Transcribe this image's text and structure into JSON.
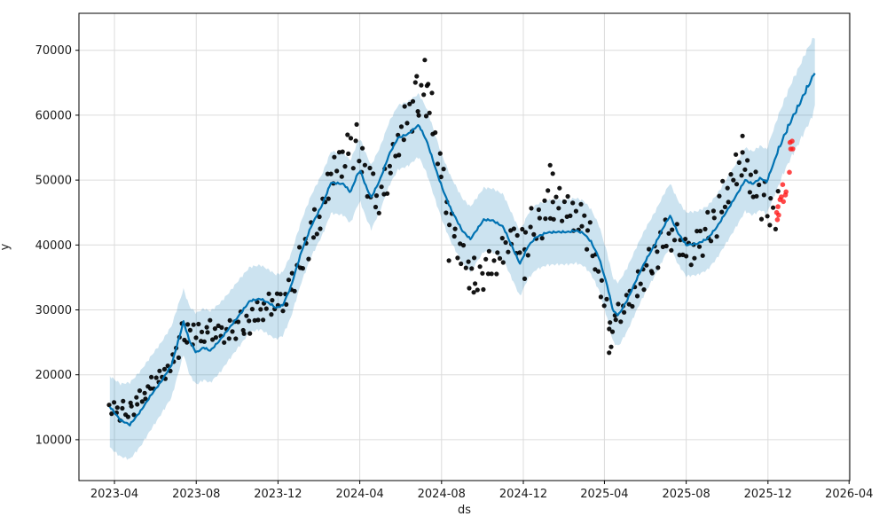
{
  "chart_data": {
    "type": "scatter",
    "title": "",
    "xlabel": "ds",
    "ylabel": "y",
    "grid": true,
    "legend": null,
    "x_ticks": [
      "2023-04",
      "2023-08",
      "2023-12",
      "2024-04",
      "2024-08",
      "2024-12",
      "2025-04",
      "2025-08",
      "2025-12",
      "2026-04"
    ],
    "y_ticks": [
      10000,
      20000,
      30000,
      40000,
      50000,
      60000,
      70000
    ],
    "xlim": [
      "2023-02-07",
      "2026-04-02"
    ],
    "ylim": [
      3700,
      75700
    ],
    "history_end": "2025-12-15",
    "colors": {
      "line": "#0072B2",
      "band": "#0072B2",
      "band_opacity": 0.2,
      "history_dots": "#000000",
      "future_dots": "#ff1a1a",
      "grid": "#dcdcdc",
      "spine": "#000000",
      "text": "#1a1a1a",
      "background": "#ffffff"
    },
    "forecast": [
      [
        "2023-03-25",
        15100,
        8800,
        19800
      ],
      [
        "2023-04-10",
        13000,
        7400,
        18600
      ],
      [
        "2023-04-24",
        12300,
        7000,
        18800
      ],
      [
        "2023-05-10",
        14400,
        9000,
        20600
      ],
      [
        "2023-05-25",
        16800,
        11500,
        22800
      ],
      [
        "2023-06-10",
        19000,
        14000,
        25000
      ],
      [
        "2023-06-25",
        21500,
        16500,
        27500
      ],
      [
        "2023-07-06",
        25500,
        20500,
        31000
      ],
      [
        "2023-07-13",
        28200,
        23200,
        33200
      ],
      [
        "2023-07-22",
        25200,
        20000,
        30500
      ],
      [
        "2023-08-01",
        23400,
        18500,
        29500
      ],
      [
        "2023-08-12",
        24200,
        19200,
        30200
      ],
      [
        "2023-08-22",
        23700,
        18800,
        29800
      ],
      [
        "2023-09-05",
        25300,
        20300,
        31000
      ],
      [
        "2023-09-20",
        27300,
        22500,
        32800
      ],
      [
        "2023-10-05",
        29300,
        24500,
        34800
      ],
      [
        "2023-10-20",
        31400,
        26600,
        36600
      ],
      [
        "2023-11-05",
        31700,
        27000,
        36900
      ],
      [
        "2023-11-20",
        30900,
        26000,
        36000
      ],
      [
        "2023-11-28",
        30300,
        25500,
        35400
      ],
      [
        "2023-12-08",
        30700,
        26000,
        35800
      ],
      [
        "2023-12-20",
        33500,
        28800,
        38500
      ],
      [
        "2024-01-05",
        39000,
        34300,
        43800
      ],
      [
        "2024-01-20",
        43000,
        38300,
        47800
      ],
      [
        "2024-02-05",
        46200,
        41500,
        51000
      ],
      [
        "2024-02-18",
        49600,
        44900,
        54400
      ],
      [
        "2024-03-08",
        49400,
        44600,
        54200
      ],
      [
        "2024-03-18",
        48100,
        43300,
        53000
      ],
      [
        "2024-03-29",
        51000,
        46200,
        55900
      ],
      [
        "2024-04-02",
        51400,
        46600,
        56300
      ],
      [
        "2024-04-10",
        49100,
        44300,
        54100
      ],
      [
        "2024-04-18",
        47300,
        42400,
        52300
      ],
      [
        "2024-05-01",
        50000,
        45200,
        55000
      ],
      [
        "2024-05-15",
        54000,
        49200,
        59000
      ],
      [
        "2024-05-28",
        56500,
        51600,
        61500
      ],
      [
        "2024-06-12",
        57100,
        52200,
        62100
      ],
      [
        "2024-06-28",
        58500,
        53600,
        63300
      ],
      [
        "2024-07-10",
        56000,
        51000,
        61000
      ],
      [
        "2024-07-24",
        51500,
        46500,
        56500
      ],
      [
        "2024-08-03",
        48500,
        43500,
        53500
      ],
      [
        "2024-08-15",
        45500,
        40500,
        50500
      ],
      [
        "2024-09-01",
        42200,
        37200,
        47200
      ],
      [
        "2024-09-13",
        40900,
        35900,
        45900
      ],
      [
        "2024-10-03",
        43900,
        39000,
        48800
      ],
      [
        "2024-10-16",
        43800,
        38900,
        48700
      ],
      [
        "2024-11-01",
        42800,
        37800,
        47800
      ],
      [
        "2024-11-14",
        39800,
        34800,
        44800
      ],
      [
        "2024-11-26",
        37100,
        32100,
        42100
      ],
      [
        "2024-12-08",
        39800,
        34800,
        44800
      ],
      [
        "2024-12-20",
        41200,
        36200,
        46200
      ],
      [
        "2025-01-05",
        41900,
        36900,
        46900
      ],
      [
        "2025-01-20",
        42000,
        37000,
        47000
      ],
      [
        "2025-02-05",
        42000,
        37000,
        47000
      ],
      [
        "2025-02-18",
        42200,
        37200,
        47200
      ],
      [
        "2025-03-01",
        41800,
        36800,
        46800
      ],
      [
        "2025-03-12",
        40500,
        35500,
        45500
      ],
      [
        "2025-03-24",
        38000,
        33000,
        43000
      ],
      [
        "2025-04-05",
        33800,
        28800,
        38800
      ],
      [
        "2025-04-14",
        29800,
        25000,
        34800
      ],
      [
        "2025-04-22",
        29200,
        24400,
        34200
      ],
      [
        "2025-05-05",
        31500,
        26700,
        36500
      ],
      [
        "2025-05-18",
        34500,
        29700,
        39500
      ],
      [
        "2025-06-01",
        37500,
        32700,
        42500
      ],
      [
        "2025-06-15",
        40000,
        35200,
        45000
      ],
      [
        "2025-07-01",
        43300,
        38500,
        48300
      ],
      [
        "2025-07-08",
        44500,
        39700,
        49500
      ],
      [
        "2025-07-20",
        41800,
        37000,
        46800
      ],
      [
        "2025-08-01",
        40000,
        35200,
        45000
      ],
      [
        "2025-08-18",
        40200,
        35400,
        45200
      ],
      [
        "2025-09-02",
        41000,
        36200,
        46000
      ],
      [
        "2025-09-16",
        42800,
        38000,
        47800
      ],
      [
        "2025-10-01",
        45300,
        40500,
        50300
      ],
      [
        "2025-10-14",
        47500,
        42700,
        52500
      ],
      [
        "2025-10-28",
        50000,
        45200,
        55000
      ],
      [
        "2025-11-08",
        49400,
        44600,
        54400
      ],
      [
        "2025-11-20",
        50300,
        45400,
        55300
      ],
      [
        "2025-11-29",
        49700,
        44800,
        54700
      ],
      [
        "2025-12-08",
        52200,
        47000,
        57400
      ],
      [
        "2025-12-16",
        54500,
        49000,
        59800
      ],
      [
        "2025-12-26",
        57000,
        51500,
        62500
      ],
      [
        "2026-01-06",
        59500,
        53800,
        65200
      ],
      [
        "2026-01-16",
        61500,
        55700,
        67300
      ],
      [
        "2026-01-26",
        63700,
        57800,
        69600
      ],
      [
        "2026-02-04",
        65500,
        59500,
        71400
      ],
      [
        "2026-02-10",
        67000,
        61800,
        72300
      ]
    ],
    "observed_track": [
      [
        "2023-03-25",
        15000
      ],
      [
        "2023-04-06",
        14200
      ],
      [
        "2023-04-20",
        14500
      ],
      [
        "2023-05-04",
        15600
      ],
      [
        "2023-05-18",
        17300
      ],
      [
        "2023-06-01",
        19000
      ],
      [
        "2023-06-15",
        20300
      ],
      [
        "2023-06-29",
        22300
      ],
      [
        "2023-07-10",
        25800
      ],
      [
        "2023-07-22",
        26800
      ],
      [
        "2023-08-05",
        26000
      ],
      [
        "2023-08-20",
        26800
      ],
      [
        "2023-09-03",
        26300
      ],
      [
        "2023-09-17",
        26600
      ],
      [
        "2023-10-01",
        27400
      ],
      [
        "2023-10-15",
        27900
      ],
      [
        "2023-11-01",
        29400
      ],
      [
        "2023-11-15",
        30500
      ],
      [
        "2023-12-01",
        31100
      ],
      [
        "2023-12-15",
        32200
      ],
      [
        "2024-01-01",
        36800
      ],
      [
        "2024-01-15",
        40600
      ],
      [
        "2024-02-01",
        44000
      ],
      [
        "2024-02-15",
        49200
      ],
      [
        "2024-03-01",
        52800
      ],
      [
        "2024-03-15",
        54600
      ],
      [
        "2024-03-28",
        55000
      ],
      [
        "2024-04-08",
        52500
      ],
      [
        "2024-04-18",
        48300
      ],
      [
        "2024-04-28",
        46900
      ],
      [
        "2024-05-08",
        48500
      ],
      [
        "2024-05-20",
        53000
      ],
      [
        "2024-06-01",
        57200
      ],
      [
        "2024-06-14",
        60000
      ],
      [
        "2024-06-28",
        62300
      ],
      [
        "2024-07-08",
        63200
      ],
      [
        "2024-07-18",
        60000
      ],
      [
        "2024-07-28",
        53500
      ],
      [
        "2024-08-06",
        47500
      ],
      [
        "2024-08-16",
        42800
      ],
      [
        "2024-08-28",
        39500
      ],
      [
        "2024-09-10",
        35800
      ],
      [
        "2024-09-24",
        34900
      ],
      [
        "2024-10-08",
        36200
      ],
      [
        "2024-10-22",
        37500
      ],
      [
        "2024-11-05",
        39500
      ],
      [
        "2024-11-18",
        41300
      ],
      [
        "2024-12-02",
        39800
      ],
      [
        "2024-12-16",
        42800
      ],
      [
        "2025-01-01",
        44600
      ],
      [
        "2025-01-15",
        46300
      ],
      [
        "2025-02-01",
        45600
      ],
      [
        "2025-02-14",
        44900
      ],
      [
        "2025-03-01",
        43200
      ],
      [
        "2025-03-14",
        39500
      ],
      [
        "2025-03-26",
        34500
      ],
      [
        "2025-04-08",
        27500
      ],
      [
        "2025-04-20",
        28800
      ],
      [
        "2025-05-04",
        30800
      ],
      [
        "2025-05-18",
        33300
      ],
      [
        "2025-06-01",
        35600
      ],
      [
        "2025-06-15",
        38200
      ],
      [
        "2025-07-01",
        41300
      ],
      [
        "2025-07-14",
        41200
      ],
      [
        "2025-08-01",
        38800
      ],
      [
        "2025-08-15",
        39600
      ],
      [
        "2025-09-01",
        41800
      ],
      [
        "2025-09-15",
        44300
      ],
      [
        "2025-10-01",
        48200
      ],
      [
        "2025-10-14",
        51300
      ],
      [
        "2025-10-28",
        52300
      ],
      [
        "2025-11-10",
        49000
      ],
      [
        "2025-11-22",
        46800
      ],
      [
        "2025-12-05",
        45200
      ],
      [
        "2025-12-15",
        46000
      ]
    ],
    "noise_table": [
      700,
      -1600,
      2300,
      -500,
      1500,
      -2600,
      1000,
      3100,
      -1200,
      -2100,
      1700,
      200,
      -2900,
      2000,
      -800,
      2700,
      -1400,
      500,
      -2000,
      1100,
      -300,
      2500,
      -1800,
      900,
      -1000,
      1900,
      -600,
      1300,
      -2300
    ],
    "observed_outliers": [
      [
        "2024-07-07",
        68500
      ],
      [
        "2024-06-25",
        66000
      ],
      [
        "2024-07-12",
        64800
      ],
      [
        "2025-01-10",
        52300
      ],
      [
        "2025-01-14",
        51000
      ],
      [
        "2025-10-24",
        56800
      ],
      [
        "2024-08-12",
        37600
      ],
      [
        "2025-04-08",
        23400
      ],
      [
        "2025-04-11",
        24300
      ],
      [
        "2024-09-18",
        32700
      ],
      [
        "2024-12-03",
        34800
      ]
    ],
    "future_observed": [
      [
        "2025-12-14",
        45000
      ],
      [
        "2025-12-15",
        43900
      ],
      [
        "2025-12-16",
        45900
      ],
      [
        "2025-12-17",
        44600
      ],
      [
        "2025-12-19",
        47000
      ],
      [
        "2025-12-21",
        47400
      ],
      [
        "2025-12-23",
        49300
      ],
      [
        "2025-12-24",
        46700
      ],
      [
        "2025-12-27",
        47700
      ],
      [
        "2025-12-28",
        48200
      ],
      [
        "2026-01-02",
        51200
      ],
      [
        "2026-01-03",
        55800
      ],
      [
        "2026-01-04",
        54800
      ],
      [
        "2026-01-06",
        56000
      ],
      [
        "2026-01-07",
        54800
      ]
    ]
  }
}
